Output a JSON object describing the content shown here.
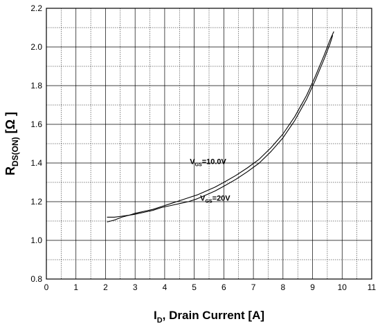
{
  "chart_data": {
    "type": "line",
    "xlabel": {
      "main": "I",
      "sub": "D",
      "rest": ", Drain Current [A]"
    },
    "ylabel": {
      "main": "R",
      "sub": "DS(ON)",
      "rest": " [Ω ]"
    },
    "xlim": [
      0,
      11
    ],
    "ylim": [
      0.8,
      2.2
    ],
    "x_ticks": [
      "0",
      "1",
      "2",
      "3",
      "4",
      "5",
      "6",
      "7",
      "8",
      "9",
      "10",
      "11"
    ],
    "y_ticks": [
      "0.8",
      "1.0",
      "1.2",
      "1.4",
      "1.6",
      "1.8",
      "2.0",
      "2.2"
    ],
    "minor_grid_y": 0.1,
    "major_grid_x": 1,
    "minor_grid_x": 0.5,
    "grid": true,
    "series": [
      {
        "name": "VGS=10.0V",
        "x": [
          2.05,
          2.3,
          2.55,
          2.8,
          3.0,
          3.3,
          3.6,
          3.9,
          4.2,
          4.5,
          4.8,
          5.1,
          5.4,
          5.7,
          6.0,
          6.4,
          6.8,
          7.2,
          7.6,
          8.0,
          8.4,
          8.8,
          9.1,
          9.4,
          9.6,
          9.72
        ],
        "y": [
          1.095,
          1.105,
          1.12,
          1.13,
          1.14,
          1.15,
          1.16,
          1.175,
          1.19,
          1.205,
          1.22,
          1.235,
          1.255,
          1.275,
          1.3,
          1.335,
          1.375,
          1.42,
          1.48,
          1.55,
          1.64,
          1.75,
          1.85,
          1.96,
          2.04,
          2.08
        ]
      },
      {
        "name": "VGS=20V",
        "x": [
          2.05,
          2.3,
          2.55,
          2.8,
          3.0,
          3.3,
          3.6,
          3.9,
          4.2,
          4.5,
          4.8,
          5.1,
          5.4,
          5.7,
          6.0,
          6.4,
          6.8,
          7.2,
          7.6,
          8.0,
          8.4,
          8.8,
          9.1,
          9.4,
          9.6,
          9.68
        ],
        "y": [
          1.12,
          1.12,
          1.125,
          1.13,
          1.135,
          1.145,
          1.155,
          1.17,
          1.18,
          1.19,
          1.2,
          1.215,
          1.235,
          1.255,
          1.28,
          1.315,
          1.355,
          1.4,
          1.46,
          1.53,
          1.62,
          1.73,
          1.83,
          1.94,
          2.02,
          2.06
        ]
      }
    ],
    "annotations": [
      {
        "main": "V",
        "sub": "GS",
        "rest": "=10.0V",
        "x": 4.85,
        "y": 1.395
      },
      {
        "main": "V",
        "sub": "GS",
        "rest": "=20V",
        "x": 5.2,
        "y": 1.205
      }
    ]
  }
}
